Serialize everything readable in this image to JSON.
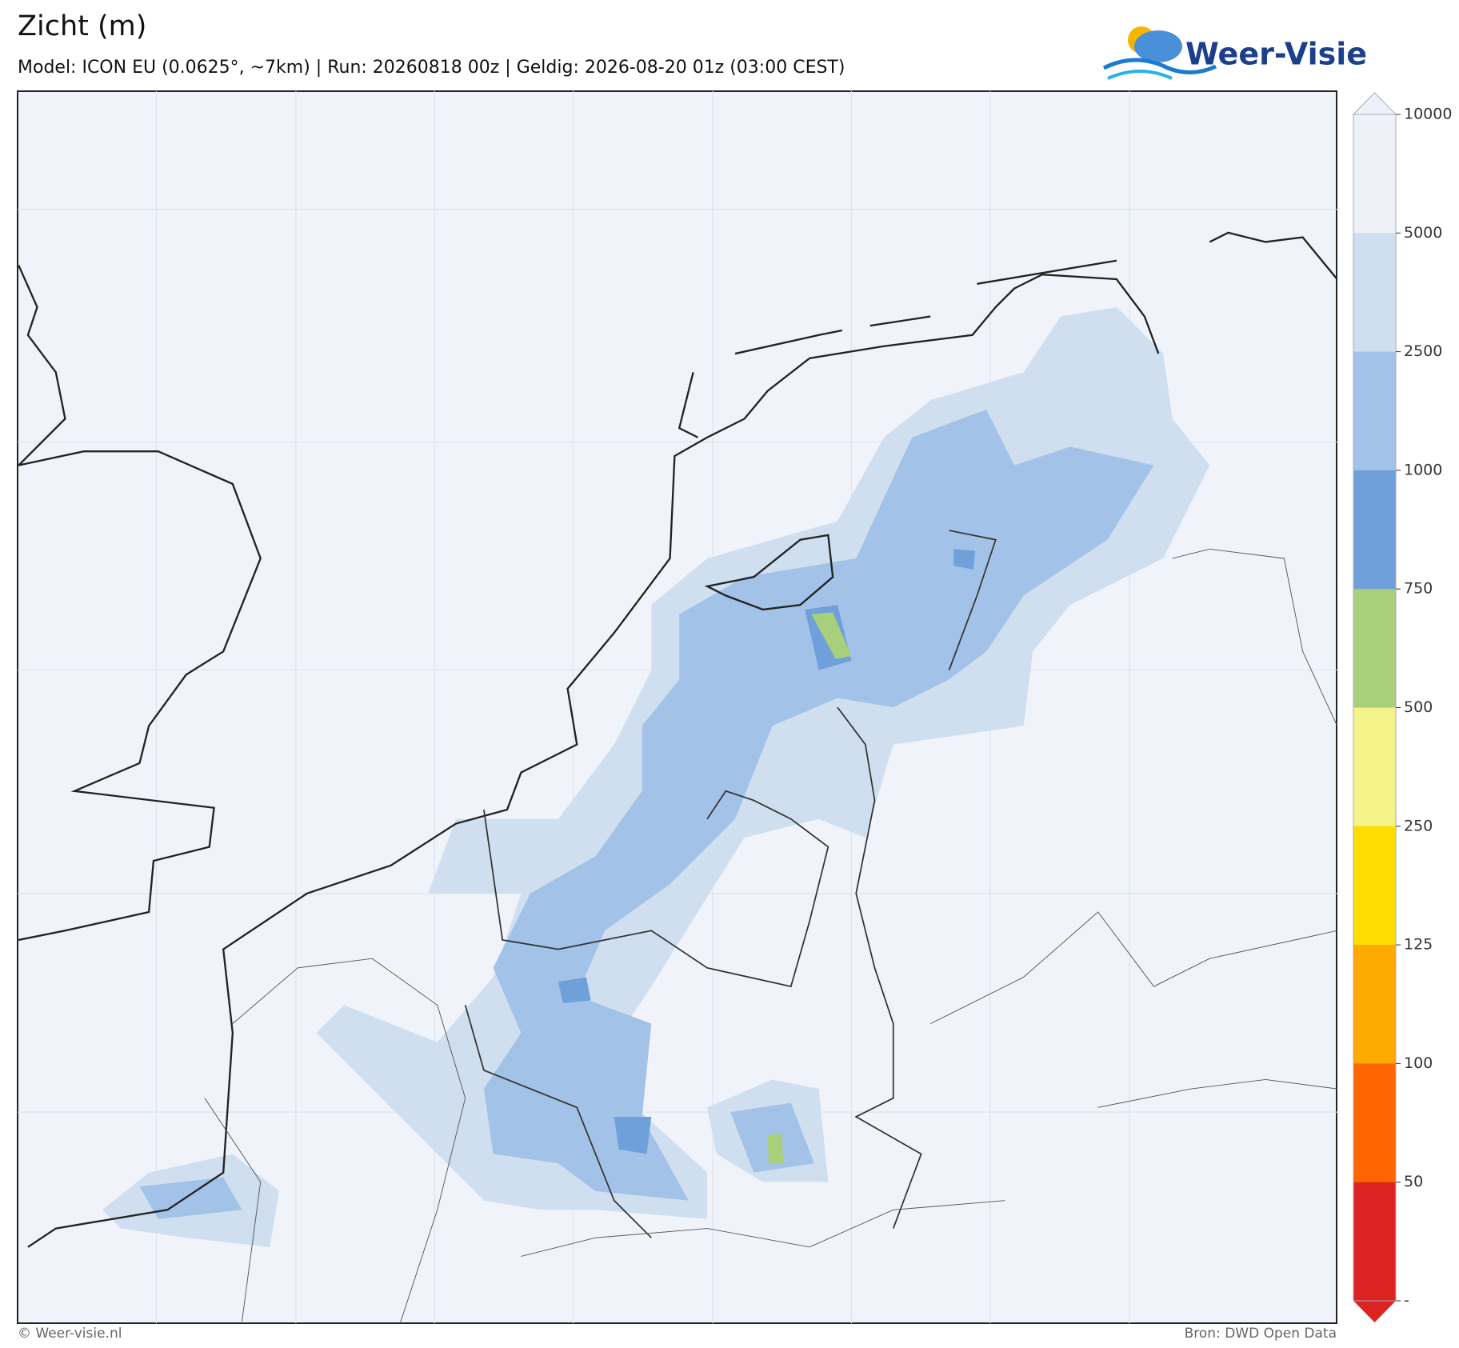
{
  "header": {
    "title": "Zicht (m)",
    "subtitle": "Model: ICON EU (0.0625°, ~7km)  |  Run: 20260818 00z  |  Geldig: 2026-08-20 01z (03:00 CEST)",
    "logo": "Weer-Visie"
  },
  "colorbar": {
    "levels": [
      10000,
      5000,
      2500,
      1000,
      750,
      500,
      250,
      125,
      100,
      50
    ],
    "bottom_label": "-",
    "colors": [
      "#eef2f8",
      "#cfdff0",
      "#a3c2e8",
      "#6fa0da",
      "#a8d07a",
      "#f3f38a",
      "#ffdd00",
      "#ffaa00",
      "#ff6600",
      "#dd2222"
    ]
  },
  "footer": {
    "left": "© Weer-visie.nl",
    "right": "Bron: DWD Open Data"
  }
}
